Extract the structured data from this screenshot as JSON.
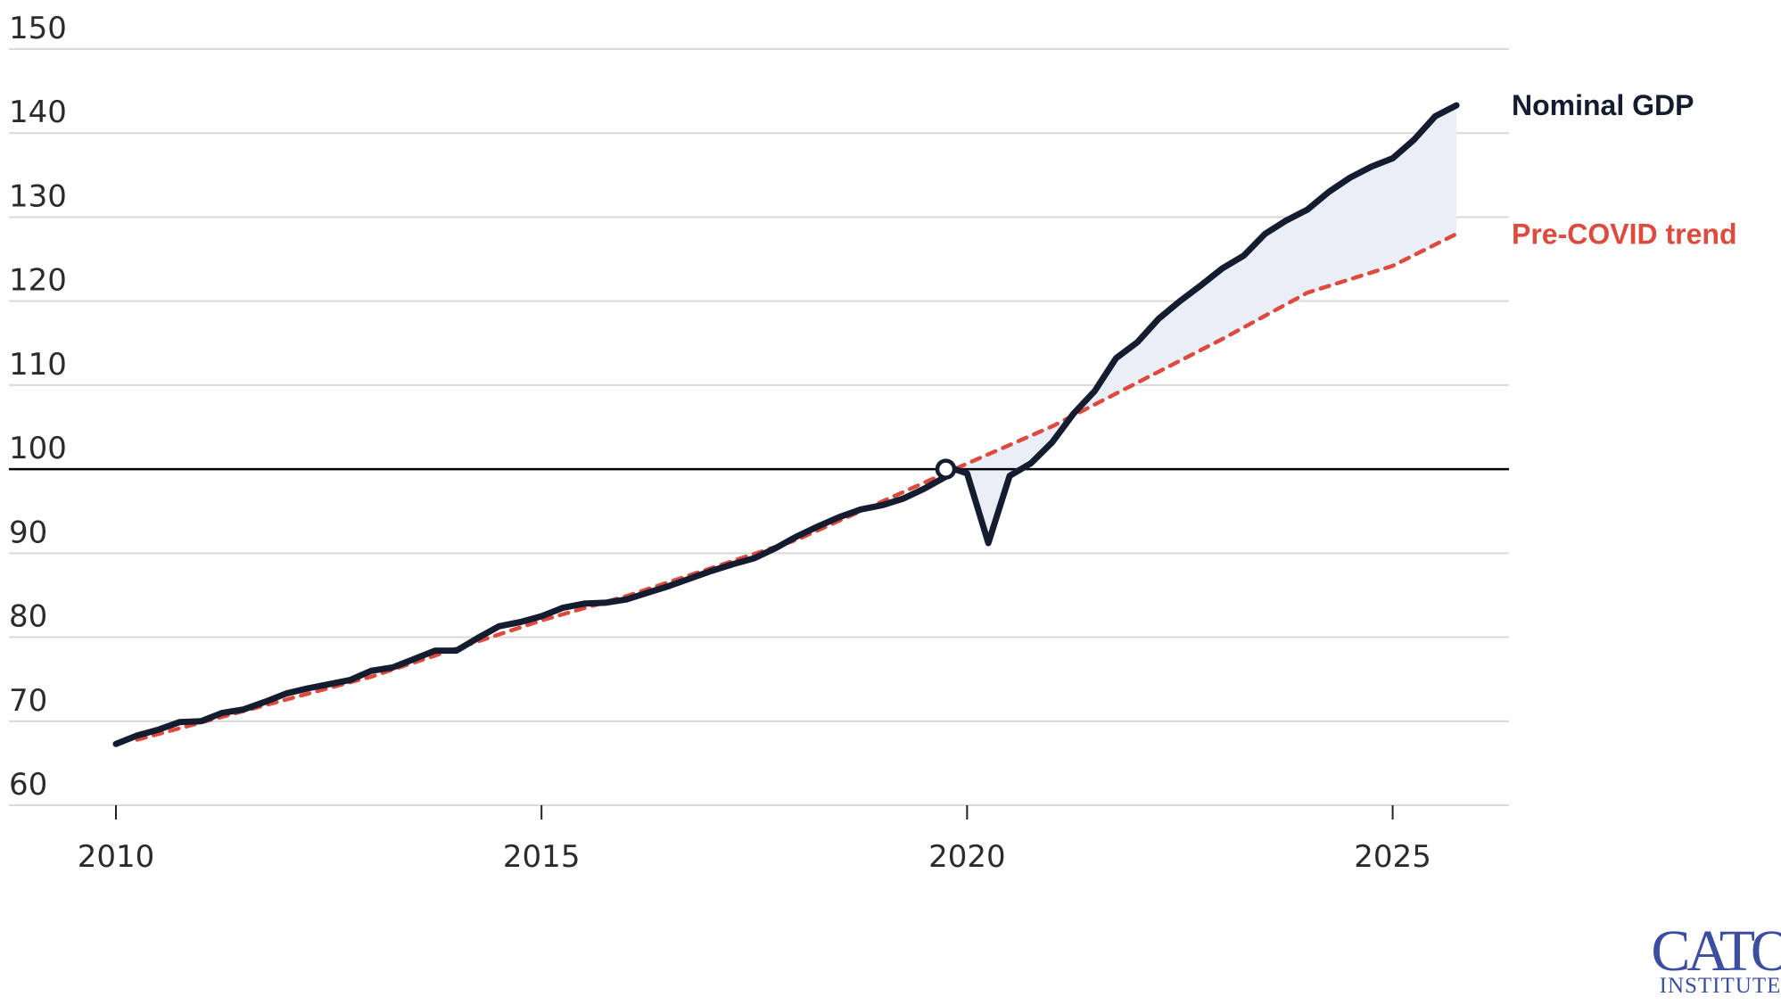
{
  "chart_data": {
    "type": "line",
    "title": "",
    "xlabel": "",
    "ylabel": "",
    "xlim": [
      2009.5,
      2026.0
    ],
    "ylim": [
      58,
      150
    ],
    "x_ticks": [
      2010,
      2015,
      2020,
      2025
    ],
    "x_tick_labels": [
      "2010",
      "2015",
      "2020",
      "2025"
    ],
    "y_ticks": [
      60,
      70,
      80,
      90,
      100,
      110,
      120,
      130,
      140,
      150
    ],
    "y_tick_labels": [
      "60",
      "70",
      "80",
      "90",
      "100",
      "110",
      "120",
      "130",
      "140",
      "150"
    ],
    "grid": "horizontal",
    "legend": "direct labels at right end of lines",
    "reference_line": 100,
    "marker": {
      "x": 2019.75,
      "y": 100
    },
    "shade_between_series": true,
    "colors": {
      "gdp": "#141c2f",
      "trend": "#dd4b3f",
      "fill": "#e9eef7",
      "grid": "#d9d9d9",
      "reference": "#000000",
      "logo": "#3b4ea0"
    },
    "series": [
      {
        "name": "Nominal GDP",
        "style": "solid",
        "points": [
          [
            2010.0,
            67.3
          ],
          [
            2010.25,
            68.3
          ],
          [
            2010.5,
            69.0
          ],
          [
            2010.75,
            69.9
          ],
          [
            2011.0,
            70.0
          ],
          [
            2011.25,
            71.0
          ],
          [
            2011.5,
            71.4
          ],
          [
            2011.75,
            72.3
          ],
          [
            2012.0,
            73.3
          ],
          [
            2012.25,
            73.9
          ],
          [
            2012.5,
            74.4
          ],
          [
            2012.75,
            74.9
          ],
          [
            2013.0,
            76.0
          ],
          [
            2013.25,
            76.4
          ],
          [
            2013.5,
            77.4
          ],
          [
            2013.75,
            78.4
          ],
          [
            2014.0,
            78.4
          ],
          [
            2014.25,
            79.9
          ],
          [
            2014.5,
            81.3
          ],
          [
            2014.75,
            81.8
          ],
          [
            2015.0,
            82.5
          ],
          [
            2015.25,
            83.5
          ],
          [
            2015.5,
            84.0
          ],
          [
            2015.75,
            84.1
          ],
          [
            2016.0,
            84.5
          ],
          [
            2016.25,
            85.3
          ],
          [
            2016.5,
            86.1
          ],
          [
            2016.75,
            87.0
          ],
          [
            2017.0,
            87.9
          ],
          [
            2017.25,
            88.7
          ],
          [
            2017.5,
            89.4
          ],
          [
            2017.75,
            90.6
          ],
          [
            2018.0,
            92.0
          ],
          [
            2018.25,
            93.2
          ],
          [
            2018.5,
            94.3
          ],
          [
            2018.75,
            95.2
          ],
          [
            2019.0,
            95.7
          ],
          [
            2019.25,
            96.5
          ],
          [
            2019.5,
            97.7
          ],
          [
            2019.75,
            99.1
          ],
          [
            2019.85,
            100.0
          ],
          [
            2020.0,
            99.5
          ],
          [
            2020.25,
            91.2
          ],
          [
            2020.5,
            99.2
          ],
          [
            2020.75,
            100.7
          ],
          [
            2021.0,
            103.2
          ],
          [
            2021.25,
            106.6
          ],
          [
            2021.5,
            109.3
          ],
          [
            2021.75,
            113.2
          ],
          [
            2022.0,
            115.1
          ],
          [
            2022.25,
            117.9
          ],
          [
            2022.5,
            120.0
          ],
          [
            2022.75,
            121.9
          ],
          [
            2023.0,
            123.9
          ],
          [
            2023.25,
            125.4
          ],
          [
            2023.5,
            128.0
          ],
          [
            2023.75,
            129.6
          ],
          [
            2024.0,
            130.9
          ],
          [
            2024.25,
            133.0
          ],
          [
            2024.5,
            134.7
          ],
          [
            2024.75,
            136.0
          ],
          [
            2025.0,
            137.0
          ],
          [
            2025.25,
            139.2
          ],
          [
            2025.5,
            142.0
          ],
          [
            2025.75,
            143.3
          ]
        ]
      },
      {
        "name": "Pre-COVID trend",
        "style": "dashed",
        "points": [
          [
            2010.25,
            67.8
          ],
          [
            2013.0,
            75.3
          ],
          [
            2015.0,
            82.0
          ],
          [
            2016.0,
            84.9
          ],
          [
            2018.0,
            91.6
          ],
          [
            2019.85,
            100.0
          ],
          [
            2021.0,
            105.1
          ],
          [
            2022.0,
            110.3
          ],
          [
            2023.0,
            115.5
          ],
          [
            2024.0,
            121.0
          ],
          [
            2025.0,
            124.2
          ],
          [
            2025.75,
            128.0
          ]
        ]
      }
    ]
  },
  "logo": {
    "main": "CATO",
    "sub": "INSTITUTE"
  }
}
